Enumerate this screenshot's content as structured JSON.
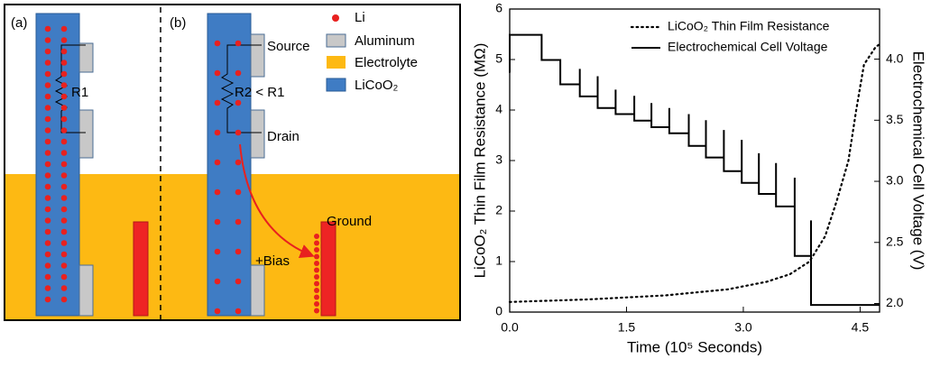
{
  "diagram": {
    "panels": [
      {
        "label": "(a)",
        "resistor": "R1"
      },
      {
        "label": "(b)",
        "resistor": "R2 < R1",
        "source": "Source",
        "drain": "Drain",
        "bias": "+Bias",
        "ground": "Ground"
      }
    ],
    "legend": [
      "Li",
      "Aluminum",
      "Electrolyte",
      "LiCoO₂"
    ]
  },
  "chart_data": {
    "type": "line",
    "xlabel": "Time (10⁵ Seconds)",
    "ylabel": "LiCoO₂ Thin Film Resistance (MΩ)",
    "y2label": "Electrochemical Cell Voltage (V)",
    "xlim": [
      0,
      4.75
    ],
    "xticks": [
      {
        "value": 0,
        "label": "0.0"
      },
      1.5,
      {
        "value": 3,
        "label": "3.0"
      },
      4.5
    ],
    "ylim": [
      0,
      6
    ],
    "yticks": [
      0,
      1,
      2,
      3,
      4,
      5,
      6
    ],
    "y2lim": [
      1.93,
      4.41
    ],
    "y2ticks": [
      {
        "value": 2,
        "label": "2.0"
      },
      2.5,
      {
        "value": 3,
        "label": "3.0"
      },
      3.5,
      {
        "value": 4,
        "label": "4.0"
      }
    ],
    "legend": "upper center",
    "series": [
      {
        "name": "LiCoO₂ Thin Film Resistance",
        "color": "#000000",
        "line_style": "dotted",
        "axis": "y",
        "x": [
          0,
          1,
          2,
          2.8,
          3.3,
          3.6,
          3.85,
          4.05,
          4.2,
          4.35,
          4.45,
          4.55,
          4.7,
          4.75
        ],
        "values": [
          0.2,
          0.25,
          0.33,
          0.45,
          0.6,
          0.75,
          1.0,
          1.5,
          2.2,
          3.0,
          4.0,
          4.9,
          5.25,
          5.3
        ]
      },
      {
        "name": "Electrochemical Cell Voltage",
        "color": "#000000",
        "line_style": "solid",
        "axis": "y2",
        "x": [
          0,
          0,
          0.41,
          0.41,
          0.65,
          0.65,
          0.9,
          0.9,
          0.9,
          1.13,
          1.13,
          1.13,
          1.36,
          1.36,
          1.36,
          1.6,
          1.6,
          1.6,
          1.82,
          1.82,
          1.82,
          2.05,
          2.05,
          2.05,
          2.3,
          2.3,
          2.3,
          2.52,
          2.52,
          2.52,
          2.75,
          2.75,
          2.75,
          2.98,
          2.98,
          2.98,
          3.2,
          3.2,
          3.2,
          3.42,
          3.42,
          3.42,
          3.66,
          3.66,
          3.66,
          3.87,
          3.87,
          3.87,
          4.75
        ],
        "values": [
          3.89,
          4.199,
          4.199,
          3.993,
          3.993,
          3.794,
          3.794,
          3.92,
          3.695,
          3.695,
          3.86,
          3.6,
          3.6,
          3.75,
          3.55,
          3.55,
          3.7,
          3.497,
          3.497,
          3.64,
          3.443,
          3.443,
          3.6,
          3.393,
          3.393,
          3.55,
          3.29,
          3.29,
          3.5,
          3.195,
          3.195,
          3.42,
          3.083,
          3.083,
          3.34,
          2.988,
          2.988,
          3.23,
          2.897,
          2.897,
          3.15,
          2.794,
          2.794,
          3.03,
          2.389,
          2.389,
          2.68,
          1.988,
          1.988
        ]
      }
    ]
  }
}
